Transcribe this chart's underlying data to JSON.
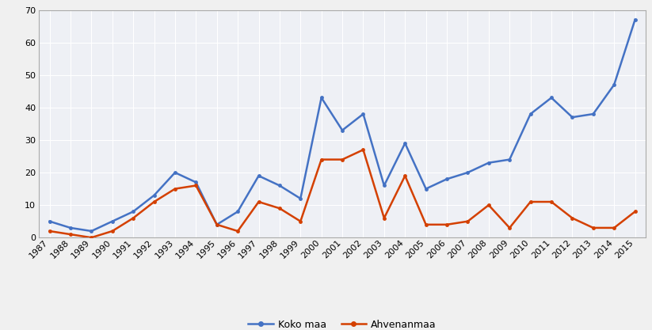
{
  "years": [
    1987,
    1988,
    1989,
    1990,
    1991,
    1992,
    1993,
    1994,
    1995,
    1996,
    1997,
    1998,
    1999,
    2000,
    2001,
    2002,
    2003,
    2004,
    2005,
    2006,
    2007,
    2008,
    2009,
    2010,
    2011,
    2012,
    2013,
    2014,
    2015
  ],
  "koko_maa": [
    5,
    3,
    2,
    5,
    8,
    13,
    20,
    17,
    4,
    8,
    19,
    16,
    12,
    43,
    33,
    38,
    16,
    29,
    15,
    18,
    20,
    23,
    24,
    38,
    43,
    37,
    38,
    47,
    67
  ],
  "ahvenanmaa": [
    2,
    1,
    0,
    2,
    6,
    11,
    15,
    16,
    4,
    2,
    11,
    9,
    5,
    24,
    24,
    27,
    6,
    19,
    4,
    4,
    5,
    10,
    3,
    11,
    11,
    6,
    3,
    3,
    8
  ],
  "koko_maa_color": "#4472C4",
  "ahvenanmaa_color": "#D44000",
  "plot_bg_color": "#EEF0F5",
  "fig_bg_color": "#F0F0F0",
  "grid_color": "#FFFFFF",
  "border_color": "#AAAAAA",
  "ylim": [
    0,
    70
  ],
  "yticks": [
    0,
    10,
    20,
    30,
    40,
    50,
    60,
    70
  ],
  "legend_koko_maa": "Koko maa",
  "legend_ahvenanmaa": "Ahvenanmaa",
  "tick_fontsize": 8,
  "legend_fontsize": 9
}
